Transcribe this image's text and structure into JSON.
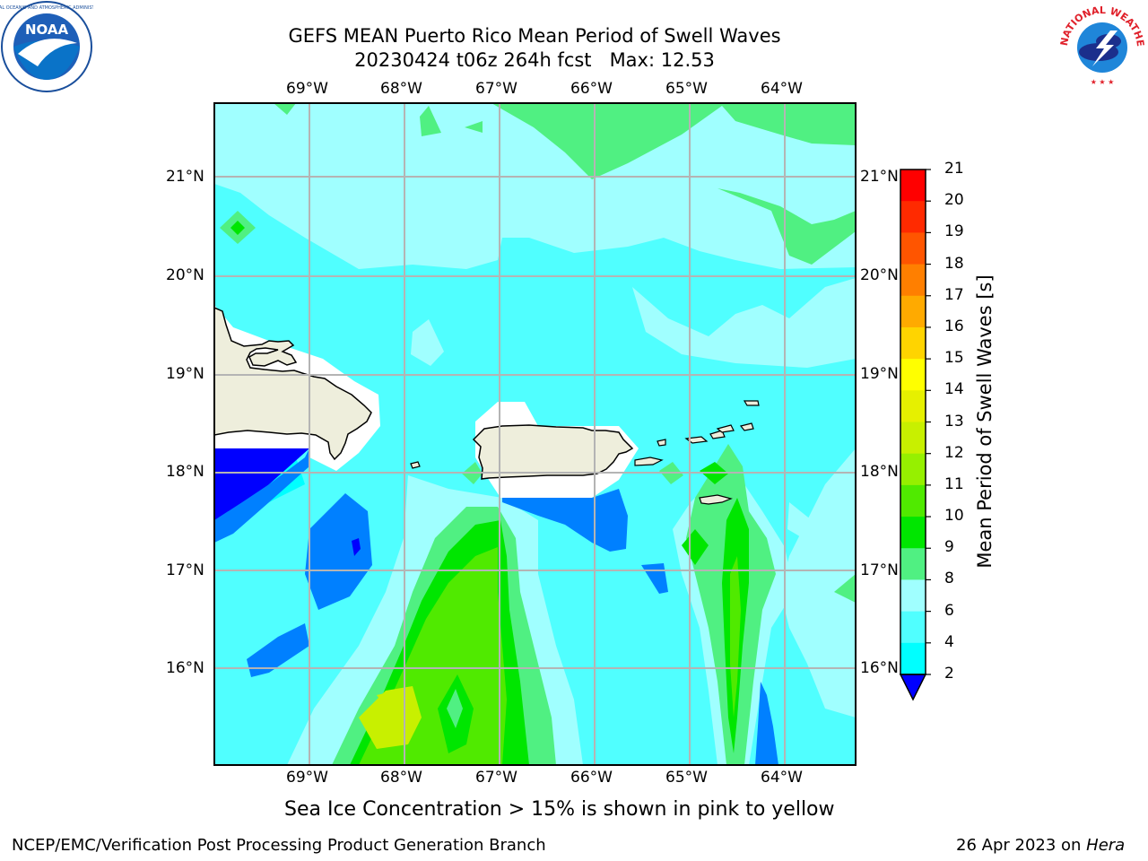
{
  "title": {
    "line1": "GEFS MEAN Puerto Rico Mean Period of Swell Waves",
    "line2": "20230424 t06z 264h fcst   Max: 12.53"
  },
  "axes": {
    "lon_labels": [
      "69°W",
      "68°W",
      "67°W",
      "66°W",
      "65°W",
      "64°W"
    ],
    "lat_labels": [
      "21°N",
      "20°N",
      "19°N",
      "18°N",
      "17°N",
      "16°N"
    ]
  },
  "colorbar": {
    "label": "Mean Period of Swell Waves [s]",
    "ticks": [
      "21",
      "20",
      "19",
      "18",
      "17",
      "16",
      "15",
      "14",
      "13",
      "12",
      "11",
      "10",
      "9",
      "8",
      "6",
      "4",
      "2"
    ],
    "colors": [
      "#ff0000",
      "#ff2a00",
      "#ff5500",
      "#ff7f00",
      "#ffaa00",
      "#ffd400",
      "#ffff00",
      "#e6f000",
      "#c8f000",
      "#96f000",
      "#50ea00",
      "#00e600",
      "#50f082",
      "#a0ffff",
      "#50ffff",
      "#00ffff",
      "#0080ff"
    ],
    "under_color": "#0000ff"
  },
  "caption": "Sea Ice Concentration > 15% is shown in pink to yellow",
  "footer": {
    "left": "NCEP/EMC/Verification Post Processing Product Generation Branch",
    "right_prefix": "26 Apr 2023 on ",
    "right_host": "Hera"
  },
  "logos": {
    "left": "NOAA",
    "right": "NATIONAL WEATHER SERVICE"
  }
}
